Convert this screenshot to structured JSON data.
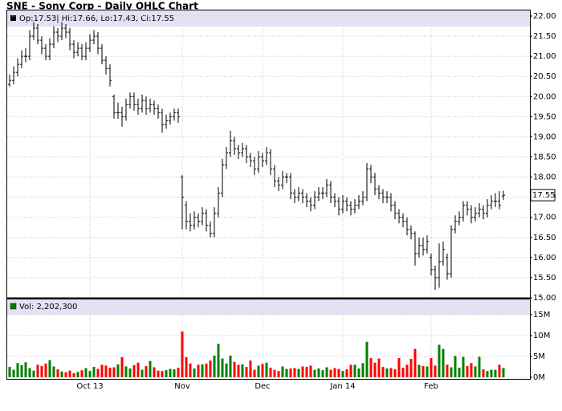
{
  "chart_data": {
    "type": "ohlc",
    "title": "SNE - Sony Corp - Daily OHLC Chart",
    "legend_text": "Op:17.53| Hi:17.66, Lo:17.43, Cl:17.55",
    "volume_legend": "Vol: 2,202,300",
    "categories": [
      null,
      null,
      null,
      null,
      null,
      null,
      null,
      null,
      null,
      null,
      null,
      null,
      null,
      null,
      null,
      null,
      null,
      null,
      null,
      null,
      "Oct 13",
      null,
      null,
      null,
      null,
      null,
      null,
      null,
      null,
      null,
      null,
      null,
      null,
      null,
      null,
      null,
      null,
      null,
      null,
      null,
      null,
      null,
      null,
      "Nov",
      null,
      null,
      null,
      null,
      null,
      null,
      null,
      null,
      null,
      null,
      null,
      null,
      null,
      null,
      null,
      null,
      null,
      null,
      null,
      "Dec",
      null,
      null,
      null,
      null,
      null,
      null,
      null,
      null,
      null,
      null,
      null,
      null,
      null,
      null,
      null,
      null,
      null,
      null,
      null,
      "Jan 14",
      null,
      null,
      null,
      null,
      null,
      null,
      null,
      null,
      null,
      null,
      null,
      null,
      null,
      null,
      null,
      null,
      null,
      null,
      null,
      null,
      null,
      "Feb",
      null,
      null,
      null,
      null,
      null,
      null,
      null,
      null,
      null,
      null,
      null,
      null,
      null,
      null,
      null,
      null,
      null,
      null
    ],
    "open": [
      20.3,
      20.4,
      20.6,
      20.8,
      21.0,
      21.0,
      21.5,
      21.7,
      21.4,
      21.2,
      21.0,
      21.3,
      21.6,
      21.5,
      21.7,
      21.6,
      21.3,
      21.1,
      21.2,
      21.0,
      21.2,
      21.4,
      21.5,
      21.2,
      20.9,
      20.7,
      20.0,
      19.6,
      19.6,
      19.5,
      19.8,
      20.0,
      19.8,
      19.7,
      19.9,
      19.7,
      19.8,
      19.7,
      19.6,
      19.3,
      19.4,
      19.5,
      19.6,
      18.0,
      17.3,
      16.9,
      16.8,
      17.0,
      16.9,
      17.1,
      16.8,
      16.6,
      17.1,
      17.6,
      18.3,
      18.6,
      18.9,
      18.7,
      18.6,
      18.7,
      18.5,
      18.4,
      18.2,
      18.5,
      18.4,
      18.6,
      18.2,
      17.9,
      17.8,
      18.0,
      18.0,
      17.6,
      17.5,
      17.6,
      17.5,
      17.4,
      17.3,
      17.5,
      17.6,
      17.6,
      17.8,
      17.5,
      17.4,
      17.2,
      17.4,
      17.3,
      17.2,
      17.3,
      17.4,
      17.5,
      18.2,
      18.0,
      17.7,
      17.6,
      17.5,
      17.5,
      17.3,
      17.1,
      17.0,
      16.9,
      16.7,
      16.6,
      16.1,
      16.3,
      16.2,
      16.0,
      15.7,
      15.5,
      15.9,
      16.0,
      15.6,
      16.7,
      16.9,
      17.0,
      17.3,
      17.2,
      17.0,
      17.1,
      17.2,
      17.1,
      17.3,
      17.4,
      17.4,
      17.53
    ],
    "high": [
      20.55,
      20.75,
      20.95,
      21.15,
      21.2,
      21.65,
      21.85,
      21.8,
      21.5,
      21.3,
      21.45,
      21.75,
      21.7,
      21.85,
      21.8,
      21.7,
      21.4,
      21.35,
      21.3,
      21.35,
      21.55,
      21.65,
      21.6,
      21.3,
      21.0,
      20.8,
      20.05,
      19.85,
      19.75,
      19.95,
      20.1,
      20.1,
      19.95,
      20.05,
      20.0,
      19.95,
      19.9,
      19.8,
      19.7,
      19.55,
      19.6,
      19.7,
      19.7,
      18.05,
      17.4,
      17.1,
      17.15,
      17.1,
      17.25,
      17.2,
      16.9,
      17.25,
      17.75,
      18.45,
      18.75,
      19.15,
      19.0,
      18.8,
      18.85,
      18.8,
      18.6,
      18.5,
      18.65,
      18.6,
      18.75,
      18.7,
      18.3,
      18.0,
      18.15,
      18.1,
      18.1,
      17.7,
      17.75,
      17.7,
      17.6,
      17.5,
      17.65,
      17.75,
      17.75,
      17.95,
      17.9,
      17.6,
      17.5,
      17.55,
      17.5,
      17.4,
      17.45,
      17.55,
      17.65,
      18.35,
      18.3,
      18.1,
      17.8,
      17.7,
      17.65,
      17.6,
      17.4,
      17.2,
      17.1,
      17.0,
      16.8,
      16.65,
      16.5,
      16.5,
      16.55,
      16.1,
      15.8,
      16.35,
      16.4,
      16.1,
      16.8,
      17.05,
      17.15,
      17.4,
      17.4,
      17.3,
      17.25,
      17.35,
      17.3,
      17.45,
      17.55,
      17.6,
      17.65,
      17.66
    ],
    "low": [
      20.25,
      20.3,
      20.5,
      20.7,
      20.85,
      20.9,
      21.4,
      21.3,
      21.05,
      20.9,
      20.9,
      21.2,
      21.35,
      21.4,
      21.45,
      21.15,
      20.95,
      21.0,
      20.9,
      20.9,
      21.1,
      21.3,
      21.05,
      20.8,
      20.55,
      20.25,
      19.45,
      19.45,
      19.25,
      19.4,
      19.7,
      19.65,
      19.55,
      19.6,
      19.55,
      19.6,
      19.55,
      19.45,
      19.1,
      19.2,
      19.3,
      19.4,
      19.35,
      16.7,
      16.7,
      16.65,
      16.7,
      16.75,
      16.8,
      16.65,
      16.5,
      16.5,
      17.0,
      17.5,
      18.2,
      18.5,
      18.55,
      18.45,
      18.5,
      18.35,
      18.25,
      18.05,
      18.1,
      18.25,
      18.3,
      18.05,
      17.75,
      17.65,
      17.7,
      17.85,
      17.45,
      17.35,
      17.4,
      17.35,
      17.25,
      17.15,
      17.2,
      17.4,
      17.45,
      17.5,
      17.35,
      17.25,
      17.05,
      17.1,
      17.15,
      17.05,
      17.1,
      17.2,
      17.3,
      17.4,
      17.85,
      17.55,
      17.45,
      17.35,
      17.35,
      17.15,
      16.95,
      16.85,
      16.75,
      16.55,
      16.45,
      15.8,
      16.0,
      16.05,
      16.1,
      15.55,
      15.2,
      15.25,
      15.8,
      15.45,
      15.5,
      16.6,
      16.8,
      16.9,
      17.05,
      16.85,
      16.9,
      17.0,
      16.95,
      17.0,
      17.2,
      17.25,
      17.2,
      17.43
    ],
    "close": [
      20.4,
      20.6,
      20.8,
      21.0,
      21.0,
      21.5,
      21.7,
      21.4,
      21.2,
      21.0,
      21.3,
      21.6,
      21.5,
      21.7,
      21.6,
      21.3,
      21.1,
      21.2,
      21.0,
      21.2,
      21.4,
      21.5,
      21.2,
      20.9,
      20.7,
      20.4,
      19.6,
      19.6,
      19.5,
      19.8,
      20.0,
      19.8,
      19.7,
      19.9,
      19.7,
      19.8,
      19.7,
      19.6,
      19.3,
      19.4,
      19.5,
      19.6,
      19.5,
      17.5,
      16.9,
      16.8,
      17.0,
      16.9,
      17.1,
      16.8,
      16.6,
      17.1,
      17.6,
      18.3,
      18.6,
      18.9,
      18.7,
      18.6,
      18.7,
      18.5,
      18.4,
      18.2,
      18.5,
      18.4,
      18.6,
      18.2,
      17.9,
      17.8,
      18.0,
      18.0,
      17.6,
      17.5,
      17.6,
      17.5,
      17.4,
      17.3,
      17.5,
      17.6,
      17.6,
      17.8,
      17.5,
      17.4,
      17.2,
      17.4,
      17.3,
      17.2,
      17.3,
      17.4,
      17.5,
      18.2,
      18.0,
      17.7,
      17.6,
      17.5,
      17.5,
      17.3,
      17.1,
      17.0,
      16.9,
      16.7,
      16.6,
      16.1,
      16.3,
      16.2,
      16.4,
      15.7,
      15.5,
      15.9,
      16.2,
      15.6,
      16.7,
      16.9,
      17.0,
      17.3,
      17.2,
      17.0,
      17.1,
      17.2,
      17.1,
      17.3,
      17.4,
      17.4,
      17.3,
      17.55
    ],
    "volume": [
      2500000,
      1800000,
      3400000,
      2900000,
      3600000,
      2200000,
      1600000,
      3000000,
      2700000,
      3300000,
      4100000,
      2600000,
      1900000,
      1400000,
      1200000,
      1600000,
      1000000,
      1300000,
      1700000,
      2200000,
      1500000,
      2500000,
      2000000,
      3000000,
      2800000,
      2300000,
      2400000,
      3100000,
      4800000,
      2600000,
      2100000,
      2900000,
      3500000,
      1800000,
      2700000,
      3900000,
      2400000,
      1600000,
      1500000,
      1700000,
      2000000,
      1900000,
      2300000,
      11000000,
      4800000,
      3300000,
      2100000,
      3000000,
      3100000,
      3300000,
      4000000,
      5200000,
      8000000,
      4500000,
      3300000,
      5200000,
      3700000,
      3000000,
      3100000,
      2500000,
      4000000,
      1800000,
      2800000,
      3200000,
      3500000,
      2300000,
      1800000,
      1500000,
      2600000,
      2000000,
      2100000,
      2200000,
      2000000,
      2600000,
      2500000,
      2800000,
      1800000,
      2100000,
      1700000,
      2400000,
      1800000,
      2200000,
      2000000,
      1500000,
      1900000,
      3000000,
      3000000,
      2100000,
      3400000,
      8500000,
      4600000,
      3500000,
      4500000,
      2500000,
      2100000,
      2200000,
      1900000,
      4600000,
      2300000,
      3000000,
      4400000,
      6800000,
      3000000,
      2700000,
      2600000,
      4600000,
      2800000,
      7800000,
      6800000,
      3000000,
      2400000,
      5100000,
      2300000,
      4900000,
      2700000,
      3400000,
      2600000,
      4900000,
      1900000,
      1500000,
      1800000,
      1800000,
      3000000,
      2202300
    ],
    "bar_color": "#000000",
    "up_color": "#008000",
    "down_color": "#ff0000",
    "ylim": [
      15,
      22
    ],
    "yticks": [
      {
        "value": 15,
        "label": "15.00"
      },
      {
        "value": 15.5,
        "label": "15.50"
      },
      {
        "value": 16,
        "label": "16.00"
      },
      {
        "value": 16.5,
        "label": "16.50"
      },
      {
        "value": 17,
        "label": "17.00"
      },
      {
        "value": 17.5,
        "label": "17.50"
      },
      {
        "value": 18,
        "label": "18.00"
      },
      {
        "value": 18.5,
        "label": "18.50"
      },
      {
        "value": 19,
        "label": "19.00"
      },
      {
        "value": 19.5,
        "label": "19.50"
      },
      {
        "value": 20,
        "label": "20.00"
      },
      {
        "value": 20.5,
        "label": "20.50"
      },
      {
        "value": 21,
        "label": "21.00"
      },
      {
        "value": 21.5,
        "label": "21.50"
      },
      {
        "value": 22,
        "label": "22.00"
      }
    ],
    "y2lim": [
      0,
      15000000
    ],
    "y2ticks": [
      {
        "value": 0,
        "label": "0M"
      },
      {
        "value": 5000000,
        "label": "5M"
      },
      {
        "value": 10000000,
        "label": "10M"
      },
      {
        "value": 15000000,
        "label": "15M"
      }
    ],
    "grid": true
  }
}
